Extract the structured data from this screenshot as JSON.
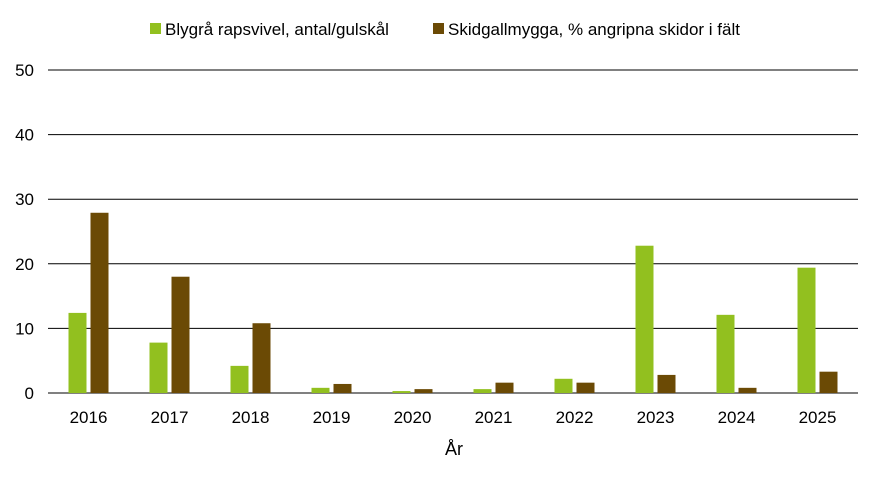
{
  "chart_data": {
    "type": "bar",
    "title": "",
    "xlabel": "År",
    "ylabel": "",
    "categories": [
      "2016",
      "2017",
      "2018",
      "2019",
      "2020",
      "2021",
      "2022",
      "2023",
      "2024",
      "2025"
    ],
    "series": [
      {
        "name": "Blygrå rapsvivel, antal/gulskål",
        "color": "#92c01f",
        "values": [
          12.4,
          7.8,
          4.2,
          0.8,
          0.3,
          0.6,
          2.2,
          22.8,
          12.1,
          19.4
        ]
      },
      {
        "name": "Skidgallmygga, % angripna skidor i fält",
        "color": "#6b4a05",
        "values": [
          27.9,
          18.0,
          10.8,
          1.4,
          0.6,
          1.6,
          1.6,
          2.8,
          0.8,
          3.3
        ]
      }
    ],
    "ylim": [
      0,
      50
    ],
    "yticks": [
      0,
      10,
      20,
      30,
      40,
      50
    ],
    "grid": true,
    "legend_position": "top"
  }
}
